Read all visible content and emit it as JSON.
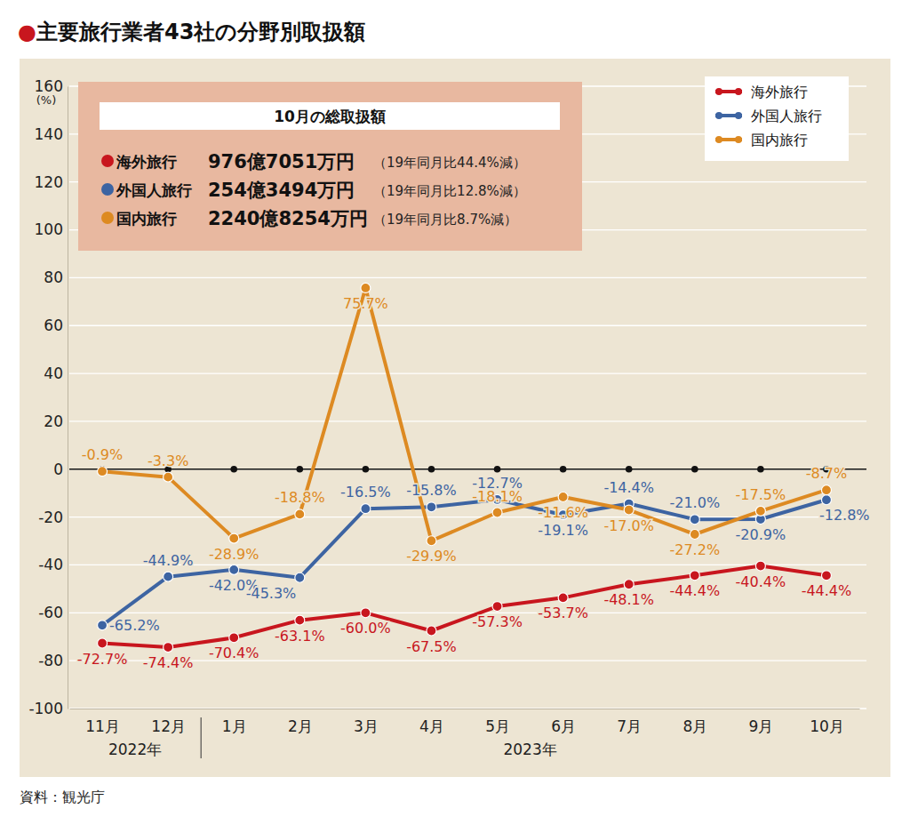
{
  "chart_data": {
    "type": "line",
    "title": "●主要旅行業者43社の分野別取扱額",
    "y_label": "(%)",
    "source": "資料：観光庁",
    "categories": [
      "11月",
      "12月",
      "1月",
      "2月",
      "3月",
      "4月",
      "5月",
      "6月",
      "7月",
      "8月",
      "9月",
      "10月"
    ],
    "category_groups": [
      {
        "label": "2022年",
        "count": 2
      },
      {
        "label": "2023年",
        "count": 10
      }
    ],
    "series": [
      {
        "name": "海外旅行",
        "color": "#c8161e",
        "values": [
          -72.7,
          -74.4,
          -70.4,
          -63.1,
          -60.0,
          -67.5,
          -57.3,
          -53.7,
          -48.1,
          -44.4,
          -40.4,
          -44.4
        ],
        "value_labels": [
          "-72.7%",
          "-74.4%",
          "-70.4%",
          "-63.1%",
          "-60.0%",
          "-67.5%",
          "-57.3%",
          "-53.7%",
          "-48.1%",
          "-44.4%",
          "-40.4%",
          "-44.4%"
        ]
      },
      {
        "name": "外国人旅行",
        "color": "#3d64a2",
        "values": [
          -65.2,
          -44.9,
          -42.0,
          -45.3,
          -16.5,
          -15.8,
          -12.7,
          -19.1,
          -14.4,
          -21.0,
          -20.9,
          -12.8
        ],
        "value_labels": [
          "-65.2%",
          "-44.9%",
          "-42.0%",
          "-45.3%",
          "-16.5%",
          "-15.8%",
          "-12.7%",
          "-19.1%",
          "-14.4%",
          "-21.0%",
          "-20.9%",
          "-12.8%"
        ]
      },
      {
        "name": "国内旅行",
        "color": "#dd8a22",
        "values": [
          -0.9,
          -3.3,
          -28.9,
          -18.8,
          75.7,
          -29.9,
          -18.1,
          -11.6,
          -17.0,
          -27.2,
          -17.5,
          -8.7
        ],
        "value_labels": [
          "-0.9%",
          "-3.3%",
          "-28.9%",
          "-18.8%",
          "75.7%",
          "-29.9%",
          "-18.1%",
          "-11.6%",
          "-17.0%",
          "-27.2%",
          "-17.5%",
          "-8.7%"
        ]
      }
    ],
    "ylim": [
      -100,
      160
    ],
    "yticks": [
      -100,
      -80,
      -60,
      -40,
      -20,
      0,
      20,
      40,
      60,
      80,
      100,
      120,
      140,
      160
    ],
    "grid": true,
    "legend": "upper right",
    "data_labels": true,
    "marker": "circle",
    "line_style": "solid",
    "annotation_box": {
      "title": "10月の総取扱額",
      "rows": [
        {
          "name": "海外旅行",
          "amount": "976億7051万円",
          "note": "（19年同月比44.4%減）"
        },
        {
          "name": "外国人旅行",
          "amount": "254億3494万円",
          "note": "（19年同月比12.8%減）"
        },
        {
          "name": "国内旅行",
          "amount": "2240億8254万円",
          "note": "（19年同月比8.7%減）"
        }
      ]
    }
  }
}
